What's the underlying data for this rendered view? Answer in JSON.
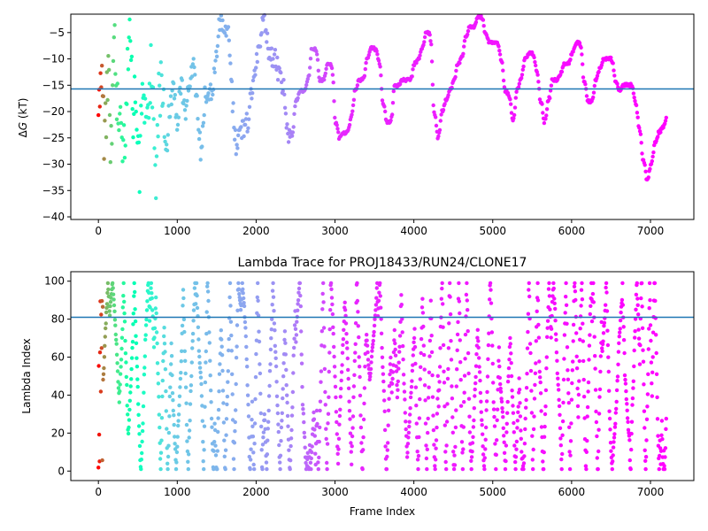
{
  "chart_data": [
    {
      "type": "scatter",
      "title": "",
      "xlabel": "",
      "ylabel_prefix": "Δ",
      "ylabel_italic": "G",
      "ylabel_suffix": " (kT)",
      "xlim": [
        -350,
        7550
      ],
      "ylim": [
        -40.5,
        -1.5
      ],
      "xticks": [
        0,
        1000,
        2000,
        3000,
        4000,
        5000,
        6000,
        7000
      ],
      "xtick_labels": [
        "0",
        "1000",
        "2000",
        "3000",
        "4000",
        "5000",
        "6000",
        "7000"
      ],
      "yticks": [
        -40,
        -35,
        -30,
        -25,
        -20,
        -15,
        -10,
        -5
      ],
      "ytick_labels": [
        "−40",
        "−35",
        "−30",
        "−25",
        "−20",
        "−15",
        "−10",
        "−5"
      ],
      "hline": -15.7,
      "hline_color": "#1f77b4",
      "colormap": "rainbow",
      "x_max": 7200,
      "trace_knots": [
        [
          0,
          -20
        ],
        [
          40,
          -10
        ],
        [
          80,
          -25
        ],
        [
          120,
          -12
        ],
        [
          160,
          -30
        ],
        [
          200,
          -8
        ],
        [
          240,
          -20
        ],
        [
          280,
          -14
        ],
        [
          320,
          -28
        ],
        [
          360,
          -16
        ],
        [
          400,
          -6
        ],
        [
          440,
          -22
        ],
        [
          480,
          -18
        ],
        [
          520,
          -30
        ],
        [
          560,
          -14
        ],
        [
          600,
          -22
        ],
        [
          640,
          -18
        ],
        [
          680,
          -10
        ],
        [
          720,
          -37
        ],
        [
          760,
          -20
        ],
        [
          800,
          -14
        ],
        [
          850,
          -26
        ],
        [
          900,
          -20
        ],
        [
          950,
          -16
        ],
        [
          1000,
          -22
        ],
        [
          1050,
          -14
        ],
        [
          1100,
          -20
        ],
        [
          1150,
          -16
        ],
        [
          1200,
          -10
        ],
        [
          1250,
          -18
        ],
        [
          1300,
          -28
        ],
        [
          1350,
          -17
        ],
        [
          1400,
          -17
        ],
        [
          1450,
          -16
        ],
        [
          1500,
          -8
        ],
        [
          1550,
          -2
        ],
        [
          1600,
          -6
        ],
        [
          1650,
          -4
        ],
        [
          1700,
          -18
        ],
        [
          1750,
          -28
        ],
        [
          1800,
          -24
        ],
        [
          1850,
          -23
        ],
        [
          1900,
          -22
        ],
        [
          1950,
          -15
        ],
        [
          2000,
          -11
        ],
        [
          2050,
          -6
        ],
        [
          2100,
          -2
        ],
        [
          2150,
          -8
        ],
        [
          2200,
          -10
        ],
        [
          2250,
          -10
        ],
        [
          2300,
          -14
        ],
        [
          2350,
          -16
        ],
        [
          2400,
          -24
        ],
        [
          2450,
          -26
        ],
        [
          2500,
          -18
        ],
        [
          2550,
          -16
        ],
        [
          2600,
          -16
        ],
        [
          2650,
          -14
        ],
        [
          2700,
          -8
        ],
        [
          2750,
          -8
        ],
        [
          2800,
          -14
        ],
        [
          2850,
          -14
        ],
        [
          2900,
          -11
        ],
        [
          2950,
          -11
        ],
        [
          3000,
          -22
        ],
        [
          3050,
          -25
        ],
        [
          3100,
          -24
        ],
        [
          3150,
          -24
        ],
        [
          3200,
          -21
        ],
        [
          3250,
          -16
        ],
        [
          3300,
          -14
        ],
        [
          3350,
          -14
        ],
        [
          3400,
          -10
        ],
        [
          3450,
          -8
        ],
        [
          3500,
          -8
        ],
        [
          3550,
          -10
        ],
        [
          3600,
          -18
        ],
        [
          3650,
          -22
        ],
        [
          3700,
          -22
        ],
        [
          3750,
          -15
        ],
        [
          3800,
          -15
        ],
        [
          3850,
          -14
        ],
        [
          3900,
          -14
        ],
        [
          3950,
          -14
        ],
        [
          4000,
          -11
        ],
        [
          4050,
          -10
        ],
        [
          4100,
          -8
        ],
        [
          4150,
          -5
        ],
        [
          4200,
          -5
        ],
        [
          4250,
          -20
        ],
        [
          4300,
          -25
        ],
        [
          4350,
          -20
        ],
        [
          4400,
          -18
        ],
        [
          4450,
          -16
        ],
        [
          4500,
          -14
        ],
        [
          4550,
          -11
        ],
        [
          4600,
          -10
        ],
        [
          4650,
          -6
        ],
        [
          4700,
          -4
        ],
        [
          4750,
          -4
        ],
        [
          4800,
          -2
        ],
        [
          4850,
          -2
        ],
        [
          4900,
          -5
        ],
        [
          4950,
          -7
        ],
        [
          5000,
          -7
        ],
        [
          5050,
          -7
        ],
        [
          5100,
          -10
        ],
        [
          5150,
          -16
        ],
        [
          5200,
          -17
        ],
        [
          5250,
          -22
        ],
        [
          5300,
          -16
        ],
        [
          5350,
          -14
        ],
        [
          5400,
          -10
        ],
        [
          5450,
          -9
        ],
        [
          5500,
          -9
        ],
        [
          5550,
          -12
        ],
        [
          5600,
          -18
        ],
        [
          5650,
          -22
        ],
        [
          5700,
          -18
        ],
        [
          5750,
          -14
        ],
        [
          5800,
          -14
        ],
        [
          5850,
          -13
        ],
        [
          5900,
          -11
        ],
        [
          5950,
          -11
        ],
        [
          6000,
          -9
        ],
        [
          6050,
          -7
        ],
        [
          6100,
          -7
        ],
        [
          6150,
          -14
        ],
        [
          6200,
          -18
        ],
        [
          6250,
          -18
        ],
        [
          6300,
          -14
        ],
        [
          6350,
          -12
        ],
        [
          6400,
          -10
        ],
        [
          6450,
          -10
        ],
        [
          6500,
          -10
        ],
        [
          6550,
          -14
        ],
        [
          6600,
          -16
        ],
        [
          6650,
          -15
        ],
        [
          6700,
          -15
        ],
        [
          6750,
          -15
        ],
        [
          6800,
          -18
        ],
        [
          6850,
          -23
        ],
        [
          6900,
          -29
        ],
        [
          6950,
          -33
        ],
        [
          7000,
          -30
        ],
        [
          7050,
          -26
        ],
        [
          7100,
          -24
        ],
        [
          7150,
          -23
        ],
        [
          7200,
          -21
        ]
      ]
    },
    {
      "type": "scatter",
      "title": "Lambda Trace for PROJ18433/RUN24/CLONE17",
      "xlabel": "Frame Index",
      "ylabel": "Lambda Index",
      "xlim": [
        -350,
        7550
      ],
      "ylim": [
        -5,
        105
      ],
      "xticks": [
        0,
        1000,
        2000,
        3000,
        4000,
        5000,
        6000,
        7000
      ],
      "xtick_labels": [
        "0",
        "1000",
        "2000",
        "3000",
        "4000",
        "5000",
        "6000",
        "7000"
      ],
      "yticks": [
        0,
        20,
        40,
        60,
        80,
        100
      ],
      "ytick_labels": [
        "0",
        "20",
        "40",
        "60",
        "80",
        "100"
      ],
      "hline": 81,
      "hline_color": "#1f77b4",
      "colormap": "rainbow",
      "x_max": 7200
    }
  ]
}
